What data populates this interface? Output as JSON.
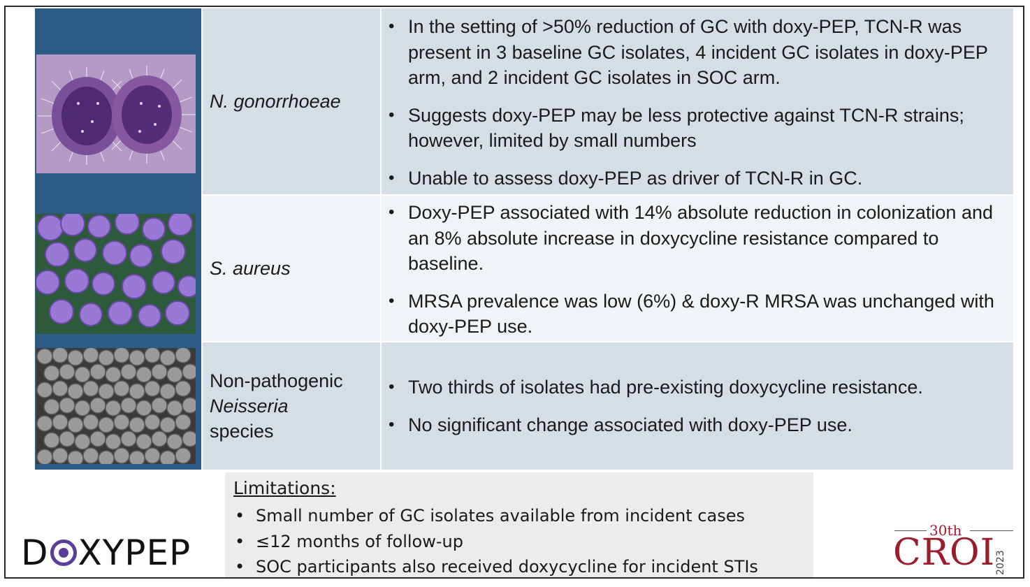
{
  "rows": [
    {
      "organism": [
        "N. gonorrhoeae"
      ],
      "bullets": [
        "In the setting of >50% reduction of GC with doxy-PEP, TCN-R was present in 3 baseline GC isolates, 4 incident GC isolates in doxy-PEP arm, and 2 incident GC isolates in SOC arm.",
        "Suggests doxy-PEP may be less protective against TCN-R strains; however, limited by small numbers",
        "Unable to assess doxy-PEP as driver of TCN-R in GC."
      ]
    },
    {
      "organism": [
        "S. aureus"
      ],
      "bullets": [
        "Doxy-PEP associated with 14% absolute reduction in colonization and an 8% absolute increase in doxycycline resistance compared to baseline.",
        "MRSA prevalence was low (6%) & doxy-R MRSA was unchanged with doxy-PEP use."
      ]
    },
    {
      "organism": [
        "Non-pathogenic",
        "Neisseria",
        "species"
      ],
      "bullets": [
        "Two thirds of isolates had pre-existing doxycycline resistance.",
        "No significant change associated with doxy-PEP use."
      ]
    }
  ],
  "limitations": {
    "title": "Limitations:",
    "items": [
      "Small number of GC isolates available from incident cases",
      "≤12 months of follow-up",
      "SOC participants also received doxycycline for incident STIs"
    ]
  },
  "logos": {
    "doxypep_d": "D",
    "doxypep_rest": "XYPEP",
    "croi_edition": "30th",
    "croi_name": "CROI",
    "croi_year": "2023"
  },
  "colors": {
    "sidebar": "#2c5b86",
    "row_dark": "#d5dee6",
    "row_light": "#f1f4f6",
    "croi_red": "#9b1c2b",
    "doxy_purple": "#5b3c9a"
  }
}
